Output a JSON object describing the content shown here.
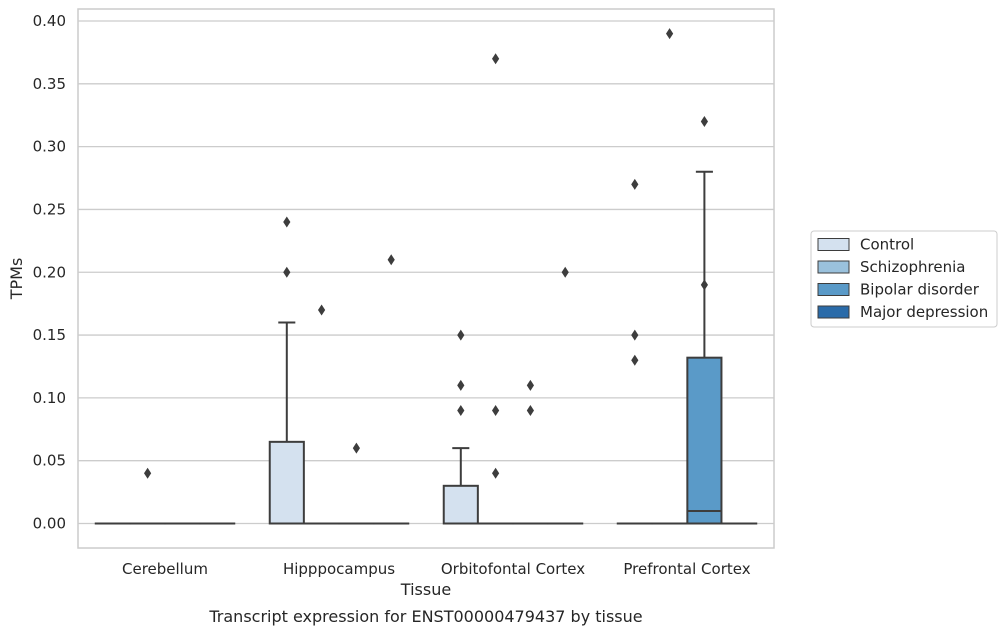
{
  "chart_data": {
    "type": "box",
    "xlabel": "Tissue",
    "ylabel": "TPMs",
    "caption": "Transcript expression for ENST00000479437 by tissue",
    "ylim": [
      -0.02,
      0.41
    ],
    "yticks": [
      0.0,
      0.05,
      0.1,
      0.15,
      0.2,
      0.25,
      0.3,
      0.35,
      0.4
    ],
    "ytick_labels": [
      "0.00",
      "0.05",
      "0.10",
      "0.15",
      "0.20",
      "0.25",
      "0.30",
      "0.35",
      "0.40"
    ],
    "grid": "horizontal",
    "legend_position": "right",
    "categories": [
      "Cerebellum",
      "Hipppocampus",
      "Orbitofontal Cortex",
      "Prefrontal Cortex"
    ],
    "series": [
      {
        "name": "Control",
        "color": "#d4e1ef",
        "boxes": [
          {
            "q1": 0,
            "median": 0,
            "q3": 0,
            "whisker_low": 0,
            "whisker_high": 0,
            "outliers": []
          },
          {
            "q1": 0,
            "median": 0,
            "q3": 0.065,
            "whisker_low": 0,
            "whisker_high": 0.16,
            "outliers": [
              0.2,
              0.24
            ]
          },
          {
            "q1": 0,
            "median": 0,
            "q3": 0.03,
            "whisker_low": 0,
            "whisker_high": 0.06,
            "outliers": [
              0.09,
              0.11,
              0.15
            ]
          },
          {
            "q1": 0,
            "median": 0,
            "q3": 0,
            "whisker_low": 0,
            "whisker_high": 0,
            "outliers": [
              0.13,
              0.15,
              0.27
            ]
          }
        ]
      },
      {
        "name": "Schizophrenia",
        "color": "#9ac1dc",
        "boxes": [
          {
            "q1": 0,
            "median": 0,
            "q3": 0,
            "whisker_low": 0,
            "whisker_high": 0,
            "outliers": [
              0.04
            ]
          },
          {
            "q1": 0,
            "median": 0,
            "q3": 0,
            "whisker_low": 0,
            "whisker_high": 0,
            "outliers": [
              0.17
            ]
          },
          {
            "q1": 0,
            "median": 0,
            "q3": 0,
            "whisker_low": 0,
            "whisker_high": 0,
            "outliers": [
              0.04,
              0.09,
              0.37
            ]
          },
          {
            "q1": 0,
            "median": 0,
            "q3": 0,
            "whisker_low": 0,
            "whisker_high": 0,
            "outliers": [
              0.39
            ]
          }
        ]
      },
      {
        "name": "Bipolar disorder",
        "color": "#5a9ac8",
        "boxes": [
          {
            "q1": 0,
            "median": 0,
            "q3": 0,
            "whisker_low": 0,
            "whisker_high": 0,
            "outliers": []
          },
          {
            "q1": 0,
            "median": 0,
            "q3": 0,
            "whisker_low": 0,
            "whisker_high": 0,
            "outliers": [
              0.06
            ]
          },
          {
            "q1": 0,
            "median": 0,
            "q3": 0,
            "whisker_low": 0,
            "whisker_high": 0,
            "outliers": [
              0.09,
              0.11
            ]
          },
          {
            "q1": 0,
            "median": 0.01,
            "q3": 0.132,
            "whisker_low": 0,
            "whisker_high": 0.28,
            "outliers": [
              0.19,
              0.32
            ]
          }
        ]
      },
      {
        "name": "Major depression",
        "color": "#2a6ba9",
        "boxes": [
          {
            "q1": 0,
            "median": 0,
            "q3": 0,
            "whisker_low": 0,
            "whisker_high": 0,
            "outliers": []
          },
          {
            "q1": 0,
            "median": 0,
            "q3": 0,
            "whisker_low": 0,
            "whisker_high": 0,
            "outliers": [
              0.21
            ]
          },
          {
            "q1": 0,
            "median": 0,
            "q3": 0,
            "whisker_low": 0,
            "whisker_high": 0,
            "outliers": [
              0.2
            ]
          },
          {
            "q1": 0,
            "median": 0,
            "q3": 0,
            "whisker_low": 0,
            "whisker_high": 0,
            "outliers": []
          }
        ]
      }
    ]
  }
}
